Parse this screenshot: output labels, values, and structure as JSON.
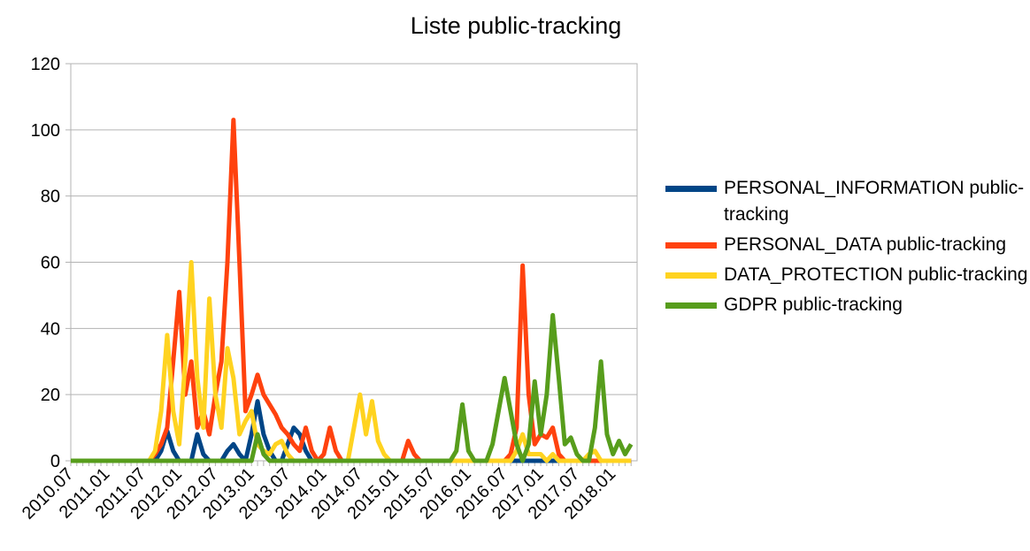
{
  "chart_data": {
    "type": "line",
    "title": "Liste public-tracking",
    "categories": [
      "2010.07",
      null,
      null,
      null,
      null,
      null,
      "2011.01",
      null,
      null,
      null,
      null,
      null,
      "2011.07",
      null,
      null,
      null,
      null,
      null,
      "2012.01",
      null,
      null,
      null,
      null,
      null,
      "2012.07",
      null,
      null,
      null,
      null,
      null,
      "2013.01",
      null,
      null,
      null,
      null,
      null,
      "2013.07",
      null,
      null,
      null,
      null,
      null,
      "2014.01",
      null,
      null,
      null,
      null,
      null,
      "2014.07",
      null,
      null,
      null,
      null,
      null,
      "2015.01",
      null,
      null,
      null,
      null,
      null,
      "2015.07",
      null,
      null,
      null,
      null,
      null,
      "2016.01",
      null,
      null,
      null,
      null,
      null,
      "2016.07",
      null,
      null,
      null,
      null,
      null,
      "2017.01",
      null,
      null,
      null,
      null,
      null,
      "2017.07",
      null,
      null,
      null,
      null,
      null,
      "2018.01",
      null,
      null,
      null
    ],
    "series": [
      {
        "name": "PERSONAL_INFORMATION public-tracking",
        "color": "#004586",
        "values": [
          0,
          0,
          0,
          0,
          0,
          0,
          0,
          0,
          0,
          0,
          0,
          0,
          0,
          0,
          0,
          3,
          9,
          3,
          0,
          0,
          0,
          8,
          2,
          0,
          0,
          0,
          3,
          5,
          2,
          0,
          8,
          18,
          8,
          3,
          0,
          0,
          5,
          10,
          8,
          3,
          0,
          0,
          0,
          0,
          0,
          0,
          0,
          0,
          0,
          0,
          0,
          0,
          0,
          0,
          0,
          0,
          0,
          0,
          0,
          0,
          0,
          0,
          0,
          0,
          0,
          0,
          0,
          0,
          0,
          0,
          0,
          0,
          0,
          0,
          0,
          0,
          0,
          0,
          0,
          0,
          0,
          0,
          0,
          0,
          0,
          0,
          0,
          0,
          0,
          0,
          0,
          0,
          0,
          0
        ]
      },
      {
        "name": "PERSONAL_DATA public-tracking",
        "color": "#ff420e",
        "values": [
          0,
          0,
          0,
          0,
          0,
          0,
          0,
          0,
          0,
          0,
          0,
          0,
          0,
          0,
          2,
          5,
          10,
          30,
          51,
          20,
          30,
          10,
          15,
          8,
          20,
          30,
          60,
          103,
          60,
          15,
          20,
          26,
          20,
          17,
          14,
          10,
          8,
          5,
          3,
          10,
          3,
          0,
          2,
          10,
          3,
          0,
          0,
          0,
          0,
          0,
          0,
          0,
          0,
          0,
          0,
          0,
          6,
          2,
          0,
          0,
          0,
          0,
          0,
          0,
          0,
          0,
          0,
          0,
          0,
          0,
          0,
          0,
          0,
          2,
          10,
          59,
          20,
          5,
          8,
          7,
          10,
          2,
          0,
          0,
          0,
          0,
          0,
          0,
          0,
          0,
          0,
          0,
          0,
          0
        ]
      },
      {
        "name": "DATA_PROTECTION public-tracking",
        "color": "#ffd320",
        "values": [
          0,
          0,
          0,
          0,
          0,
          0,
          0,
          0,
          0,
          0,
          0,
          0,
          0,
          0,
          3,
          15,
          38,
          15,
          5,
          30,
          60,
          25,
          10,
          49,
          20,
          10,
          34,
          25,
          8,
          12,
          15,
          5,
          3,
          2,
          5,
          6,
          2,
          0,
          0,
          0,
          0,
          0,
          0,
          0,
          0,
          0,
          0,
          10,
          20,
          8,
          18,
          6,
          2,
          0,
          0,
          0,
          0,
          0,
          0,
          0,
          0,
          0,
          0,
          0,
          0,
          0,
          0,
          0,
          0,
          0,
          0,
          0,
          0,
          0,
          3,
          8,
          2,
          2,
          2,
          0,
          2,
          0,
          0,
          0,
          0,
          0,
          2,
          3,
          0,
          0,
          0,
          0,
          0,
          0
        ]
      },
      {
        "name": "GDPR public-tracking",
        "color": "#579d1c",
        "values": [
          0,
          0,
          0,
          0,
          0,
          0,
          0,
          0,
          0,
          0,
          0,
          0,
          0,
          0,
          0,
          0,
          0,
          0,
          0,
          0,
          0,
          0,
          0,
          0,
          0,
          0,
          0,
          0,
          0,
          0,
          0,
          8,
          2,
          0,
          0,
          0,
          0,
          0,
          0,
          0,
          0,
          0,
          0,
          0,
          0,
          0,
          0,
          0,
          0,
          0,
          0,
          0,
          0,
          0,
          0,
          0,
          0,
          0,
          0,
          0,
          0,
          0,
          0,
          0,
          3,
          17,
          3,
          0,
          0,
          0,
          5,
          15,
          25,
          15,
          5,
          0,
          5,
          24,
          8,
          20,
          44,
          25,
          5,
          7,
          2,
          0,
          0,
          10,
          30,
          8,
          2,
          6,
          2,
          5
        ]
      }
    ],
    "ylim": [
      0,
      120
    ],
    "yticks": [
      0,
      20,
      40,
      60,
      80,
      100,
      120
    ],
    "grid": true,
    "legend": "right"
  }
}
